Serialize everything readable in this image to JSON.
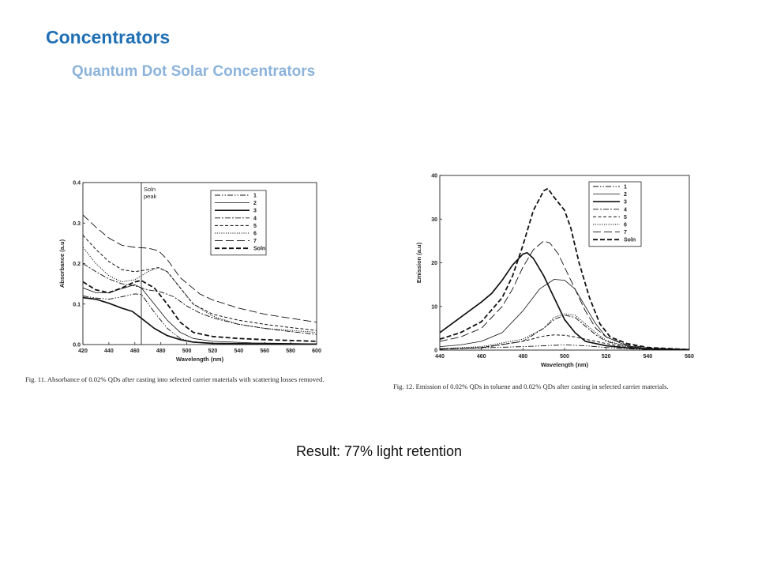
{
  "slide": {
    "title": "Concentrators",
    "subtitle": "Quantum Dot Solar Concentrators",
    "result": "Result: 77% light retention",
    "colors": {
      "title": "#1f6fb4",
      "subtitle": "#8cb3db"
    }
  },
  "chart_data": [
    {
      "type": "line",
      "caption": "Fig. 11.  Absorbance of 0.02% QDs after casting into selected carrier materials with scattering losses removed.",
      "xlabel": "Wavelength (nm)",
      "ylabel": "Absorbance (a.u)",
      "xlim": [
        420,
        600
      ],
      "ylim": [
        0,
        0.4
      ],
      "xticks": [
        "420",
        "440",
        "460",
        "480",
        "500",
        "520",
        "540",
        "560",
        "580",
        "600"
      ],
      "yticks": [
        "0.0",
        "0.1",
        "0.2",
        "0.3",
        "0.4"
      ],
      "annotation": {
        "x": 465,
        "text": [
          "Soln",
          "peak"
        ]
      },
      "legend_position": "top-right",
      "series": [
        {
          "name": "1",
          "dash": "dashdotdot",
          "points": [
            [
              420,
              0.12
            ],
            [
              430,
              0.115
            ],
            [
              440,
              0.112
            ],
            [
              450,
              0.118
            ],
            [
              460,
              0.125
            ],
            [
              465,
              0.124
            ],
            [
              475,
              0.08
            ],
            [
              485,
              0.04
            ],
            [
              495,
              0.015
            ],
            [
              505,
              0.006
            ],
            [
              520,
              0.003
            ],
            [
              550,
              0.002
            ],
            [
              600,
              0.001
            ]
          ]
        },
        {
          "name": "2",
          "dash": "solid-thin",
          "points": [
            [
              420,
              0.14
            ],
            [
              430,
              0.128
            ],
            [
              440,
              0.128
            ],
            [
              450,
              0.138
            ],
            [
              460,
              0.148
            ],
            [
              465,
              0.14
            ],
            [
              475,
              0.1
            ],
            [
              485,
              0.06
            ],
            [
              495,
              0.03
            ],
            [
              505,
              0.015
            ],
            [
              520,
              0.008
            ],
            [
              550,
              0.004
            ],
            [
              600,
              0.002
            ]
          ]
        },
        {
          "name": "3",
          "dash": "solid-thick",
          "points": [
            [
              420,
              0.116
            ],
            [
              430,
              0.112
            ],
            [
              440,
              0.102
            ],
            [
              450,
              0.09
            ],
            [
              458,
              0.082
            ],
            [
              465,
              0.065
            ],
            [
              475,
              0.04
            ],
            [
              485,
              0.022
            ],
            [
              495,
              0.012
            ],
            [
              505,
              0.006
            ],
            [
              520,
              0.003
            ],
            [
              550,
              0.002
            ],
            [
              600,
              0.001
            ]
          ]
        },
        {
          "name": "4",
          "dash": "dashdot",
          "points": [
            [
              420,
              0.2
            ],
            [
              430,
              0.18
            ],
            [
              440,
              0.162
            ],
            [
              450,
              0.15
            ],
            [
              460,
              0.145
            ],
            [
              470,
              0.135
            ],
            [
              480,
              0.13
            ],
            [
              490,
              0.118
            ],
            [
              500,
              0.095
            ],
            [
              510,
              0.078
            ],
            [
              520,
              0.066
            ],
            [
              540,
              0.05
            ],
            [
              560,
              0.04
            ],
            [
              580,
              0.032
            ],
            [
              600,
              0.025
            ]
          ]
        },
        {
          "name": "5",
          "dash": "dashed-short",
          "points": [
            [
              420,
              0.27
            ],
            [
              430,
              0.235
            ],
            [
              440,
              0.205
            ],
            [
              450,
              0.185
            ],
            [
              460,
              0.18
            ],
            [
              470,
              0.185
            ],
            [
              478,
              0.19
            ],
            [
              485,
              0.18
            ],
            [
              495,
              0.14
            ],
            [
              505,
              0.1
            ],
            [
              520,
              0.075
            ],
            [
              540,
              0.06
            ],
            [
              560,
              0.05
            ],
            [
              580,
              0.042
            ],
            [
              600,
              0.035
            ]
          ]
        },
        {
          "name": "6",
          "dash": "dotted",
          "points": [
            [
              420,
              0.24
            ],
            [
              430,
              0.2
            ],
            [
              440,
              0.17
            ],
            [
              450,
              0.155
            ],
            [
              460,
              0.16
            ],
            [
              470,
              0.18
            ],
            [
              478,
              0.19
            ],
            [
              485,
              0.18
            ],
            [
              495,
              0.14
            ],
            [
              505,
              0.1
            ],
            [
              520,
              0.07
            ],
            [
              540,
              0.05
            ],
            [
              560,
              0.04
            ],
            [
              580,
              0.035
            ],
            [
              600,
              0.03
            ]
          ]
        },
        {
          "name": "7",
          "dash": "dashed-long",
          "points": [
            [
              420,
              0.32
            ],
            [
              430,
              0.29
            ],
            [
              440,
              0.263
            ],
            [
              450,
              0.245
            ],
            [
              460,
              0.24
            ],
            [
              470,
              0.238
            ],
            [
              478,
              0.232
            ],
            [
              485,
              0.21
            ],
            [
              495,
              0.165
            ],
            [
              510,
              0.125
            ],
            [
              520,
              0.11
            ],
            [
              540,
              0.09
            ],
            [
              560,
              0.075
            ],
            [
              580,
              0.065
            ],
            [
              600,
              0.055
            ]
          ]
        },
        {
          "name": "Soln",
          "dash": "dashed-bold",
          "points": [
            [
              420,
              0.155
            ],
            [
              430,
              0.135
            ],
            [
              440,
              0.128
            ],
            [
              450,
              0.14
            ],
            [
              460,
              0.155
            ],
            [
              465,
              0.158
            ],
            [
              475,
              0.14
            ],
            [
              485,
              0.1
            ],
            [
              495,
              0.055
            ],
            [
              505,
              0.03
            ],
            [
              520,
              0.02
            ],
            [
              540,
              0.015
            ],
            [
              560,
              0.012
            ],
            [
              600,
              0.008
            ]
          ]
        }
      ]
    },
    {
      "type": "line",
      "caption": "Fig. 12.  Emission of 0.02% QDs in toluene and 0.02% QDs after casting in selected carrier materials.",
      "xlabel": "Wavelength (nm)",
      "ylabel": "Emission (a.u)",
      "xlim": [
        440,
        560
      ],
      "ylim": [
        0,
        40
      ],
      "xticks": [
        "440",
        "460",
        "480",
        "500",
        "520",
        "540",
        "560"
      ],
      "yticks": [
        "0",
        "10",
        "20",
        "30",
        "40"
      ],
      "legend_position": "top-right",
      "series": [
        {
          "name": "1",
          "dash": "dashdotdot",
          "points": [
            [
              440,
              0.3
            ],
            [
              460,
              0.5
            ],
            [
              480,
              0.8
            ],
            [
              490,
              1.0
            ],
            [
              500,
              1.2
            ],
            [
              510,
              1.0
            ],
            [
              520,
              0.6
            ],
            [
              530,
              0.3
            ],
            [
              540,
              0.1
            ],
            [
              560,
              0.0
            ]
          ]
        },
        {
          "name": "2",
          "dash": "solid-thin",
          "points": [
            [
              440,
              0.8
            ],
            [
              450,
              1.2
            ],
            [
              460,
              2
            ],
            [
              470,
              4
            ],
            [
              480,
              9
            ],
            [
              488,
              14
            ],
            [
              495,
              16.2
            ],
            [
              500,
              16
            ],
            [
              505,
              14
            ],
            [
              510,
              10
            ],
            [
              515,
              6
            ],
            [
              520,
              3
            ],
            [
              530,
              1
            ],
            [
              540,
              0.3
            ],
            [
              560,
              0.1
            ]
          ]
        },
        {
          "name": "3",
          "dash": "solid-thick",
          "points": [
            [
              440,
              4
            ],
            [
              450,
              7.5
            ],
            [
              460,
              11
            ],
            [
              465,
              13
            ],
            [
              470,
              16
            ],
            [
              475,
              19.5
            ],
            [
              480,
              22
            ],
            [
              482,
              22.3
            ],
            [
              485,
              21
            ],
            [
              490,
              17
            ],
            [
              495,
              12
            ],
            [
              500,
              7
            ],
            [
              505,
              4
            ],
            [
              510,
              2
            ],
            [
              520,
              1
            ],
            [
              530,
              0.5
            ],
            [
              540,
              0.3
            ],
            [
              560,
              0.1
            ]
          ]
        },
        {
          "name": "4",
          "dash": "dashdot",
          "points": [
            [
              440,
              0.2
            ],
            [
              460,
              0.5
            ],
            [
              480,
              2
            ],
            [
              490,
              5
            ],
            [
              495,
              7
            ],
            [
              500,
              8
            ],
            [
              505,
              7.5
            ],
            [
              510,
              5.5
            ],
            [
              515,
              3.5
            ],
            [
              520,
              2
            ],
            [
              530,
              0.8
            ],
            [
              540,
              0.3
            ],
            [
              560,
              0.0
            ]
          ]
        },
        {
          "name": "5",
          "dash": "dashed-short",
          "points": [
            [
              440,
              0.2
            ],
            [
              460,
              0.6
            ],
            [
              480,
              2
            ],
            [
              490,
              3.2
            ],
            [
              495,
              3.5
            ],
            [
              500,
              3.4
            ],
            [
              505,
              3
            ],
            [
              510,
              2.5
            ],
            [
              520,
              1.5
            ],
            [
              530,
              0.6
            ],
            [
              540,
              0.2
            ],
            [
              560,
              0.0
            ]
          ]
        },
        {
          "name": "6",
          "dash": "dotted",
          "points": [
            [
              440,
              0.3
            ],
            [
              460,
              0.8
            ],
            [
              480,
              2.5
            ],
            [
              490,
              5
            ],
            [
              495,
              7.5
            ],
            [
              500,
              8.3
            ],
            [
              505,
              8
            ],
            [
              510,
              6
            ],
            [
              515,
              4
            ],
            [
              520,
              2.2
            ],
            [
              530,
              0.8
            ],
            [
              540,
              0.3
            ],
            [
              560,
              0.1
            ]
          ]
        },
        {
          "name": "7",
          "dash": "dashed-long",
          "points": [
            [
              440,
              2
            ],
            [
              450,
              3
            ],
            [
              460,
              5
            ],
            [
              470,
              10
            ],
            [
              475,
              14
            ],
            [
              480,
              19
            ],
            [
              485,
              23
            ],
            [
              490,
              25
            ],
            [
              493,
              24.5
            ],
            [
              497,
              22
            ],
            [
              500,
              19
            ],
            [
              505,
              14
            ],
            [
              510,
              9
            ],
            [
              515,
              5
            ],
            [
              520,
              3
            ],
            [
              530,
              1.2
            ],
            [
              540,
              0.5
            ],
            [
              560,
              0.1
            ]
          ]
        },
        {
          "name": "Soln",
          "dash": "dashed-bold",
          "points": [
            [
              440,
              2.5
            ],
            [
              450,
              4
            ],
            [
              460,
              6.5
            ],
            [
              470,
              12
            ],
            [
              475,
              17
            ],
            [
              480,
              24
            ],
            [
              485,
              32
            ],
            [
              490,
              36.5
            ],
            [
              492,
              37
            ],
            [
              495,
              35
            ],
            [
              500,
              32
            ],
            [
              503,
              28
            ],
            [
              507,
              20
            ],
            [
              512,
              12
            ],
            [
              517,
              6
            ],
            [
              522,
              3
            ],
            [
              530,
              1.5
            ],
            [
              540,
              0.6
            ],
            [
              560,
              0.1
            ]
          ]
        }
      ]
    }
  ]
}
